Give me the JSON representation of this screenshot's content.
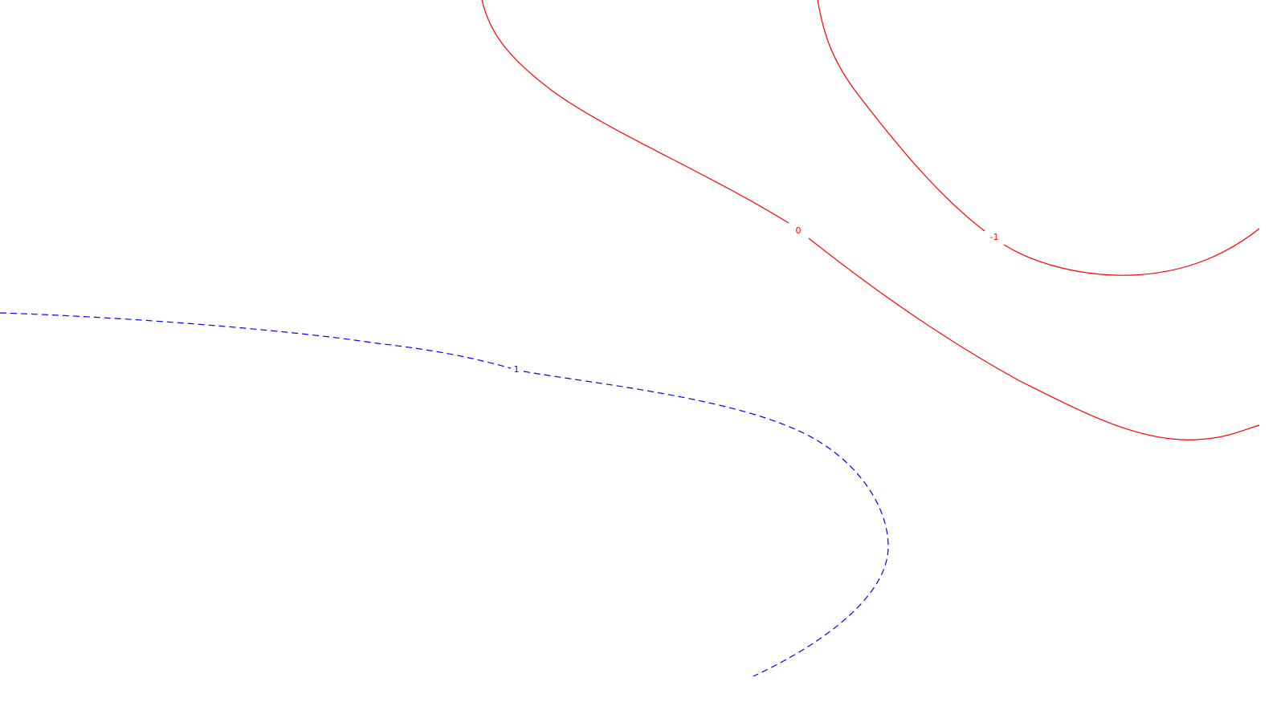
{
  "chart_data": {
    "type": "contour",
    "title": "",
    "xlabel": "",
    "ylabel": "",
    "grid": false,
    "colors": {
      "background": "#ffffff",
      "negative_or_zero": "#ff0000",
      "positive": "#0000ff"
    },
    "levels": [
      {
        "value": 0,
        "label": "0",
        "color": "#ff0000",
        "style": "solid"
      },
      {
        "value": -1,
        "label": "-1",
        "color": "#ff0000",
        "style": "solid"
      },
      {
        "value": 1,
        "label": "1",
        "color": "#0000ff",
        "style": "dashed"
      }
    ]
  }
}
